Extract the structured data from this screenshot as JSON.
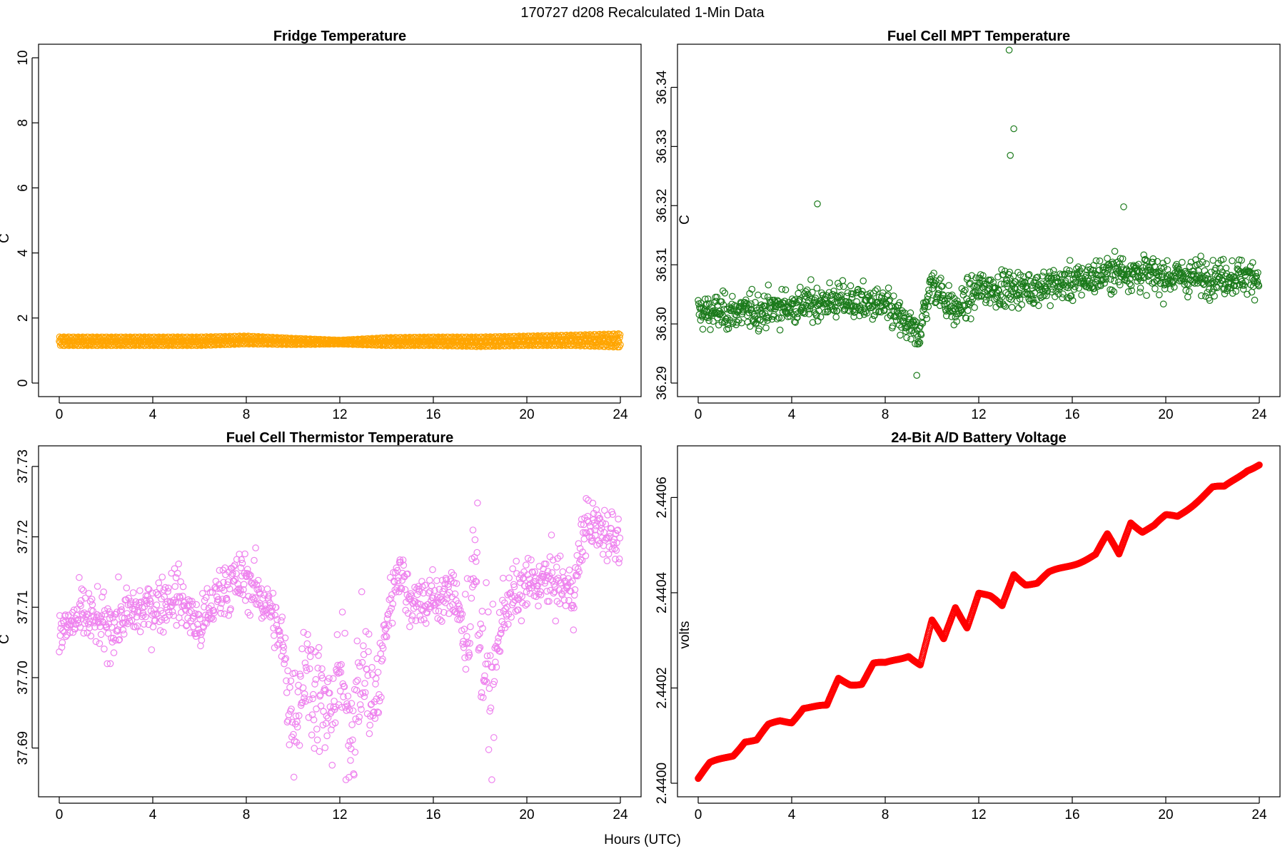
{
  "figure": {
    "title": "170727   d208   Recalculated 1-Min Data",
    "xlabel": "Hours (UTC)"
  },
  "chart_data": [
    {
      "type": "scatter",
      "title": "Fridge Temperature",
      "xlabel": "Hours (UTC)",
      "ylabel": "C",
      "xlim": [
        0,
        24
      ],
      "ylim": [
        0,
        10
      ],
      "xticks": [
        0,
        4,
        8,
        12,
        16,
        20,
        24
      ],
      "yticks": [
        0,
        2,
        4,
        6,
        8,
        10
      ],
      "ytick_labels": [
        "0",
        "2",
        "4",
        "6",
        "8",
        "10"
      ],
      "color": "#FFA500",
      "grid": false,
      "series": [
        {
          "x": [
            0,
            2,
            4,
            6,
            8,
            10,
            12,
            14,
            16,
            18,
            20,
            22,
            24
          ],
          "y_low": [
            1.15,
            1.15,
            1.15,
            1.15,
            1.2,
            1.18,
            1.2,
            1.15,
            1.15,
            1.12,
            1.15,
            1.15,
            1.1
          ],
          "y_high": [
            1.42,
            1.42,
            1.42,
            1.42,
            1.45,
            1.38,
            1.32,
            1.4,
            1.42,
            1.42,
            1.45,
            1.48,
            1.52
          ]
        }
      ]
    },
    {
      "type": "scatter",
      "title": "Fuel Cell MPT Temperature",
      "xlabel": "Hours (UTC)",
      "ylabel": "C",
      "xlim": [
        0,
        24
      ],
      "ylim": [
        36.29,
        36.345
      ],
      "xticks": [
        0,
        4,
        8,
        12,
        16,
        20,
        24
      ],
      "yticks": [
        36.29,
        36.3,
        36.31,
        36.32,
        36.33,
        36.34
      ],
      "ytick_labels": [
        "36.29",
        "36.30",
        "36.31",
        "36.32",
        "36.33",
        "36.34"
      ],
      "color": "#1B7A1B",
      "grid": false,
      "series": [
        {
          "x": [
            0,
            2,
            4,
            6,
            8,
            9.4,
            10,
            11,
            12,
            13,
            14,
            16,
            18,
            20,
            22,
            24
          ],
          "y": [
            36.302,
            36.302,
            36.303,
            36.304,
            36.303,
            36.298,
            36.307,
            36.302,
            36.306,
            36.306,
            36.306,
            36.307,
            36.309,
            36.308,
            36.308,
            36.308
          ],
          "outliers": [
            [
              5.1,
              36.3203
            ],
            [
              13.3,
              36.3463
            ],
            [
              13.5,
              36.333
            ],
            [
              13.35,
              36.3285
            ],
            [
              18.2,
              36.3198
            ],
            [
              9.35,
              36.2913
            ]
          ]
        }
      ]
    },
    {
      "type": "scatter",
      "title": "Fuel Cell Thermistor Temperature",
      "xlabel": "Hours (UTC)",
      "ylabel": "C",
      "xlim": [
        0,
        24
      ],
      "ylim": [
        37.685,
        37.731
      ],
      "xticks": [
        0,
        4,
        8,
        12,
        16,
        20,
        24
      ],
      "yticks": [
        37.69,
        37.7,
        37.71,
        37.72,
        37.73
      ],
      "ytick_labels": [
        "37.69",
        "37.70",
        "37.71",
        "37.72",
        "37.73"
      ],
      "color": "#EE82EE",
      "grid": false,
      "series": [
        {
          "x": [
            0,
            1,
            2,
            3,
            4,
            5,
            6,
            7,
            8,
            9,
            9.5,
            10,
            10.5,
            11,
            11.5,
            12,
            12.5,
            13,
            13.5,
            14,
            14.5,
            15,
            16,
            17,
            17.5,
            17.8,
            18,
            18.5,
            19,
            20,
            21,
            22,
            22.5,
            23,
            24
          ],
          "y": [
            37.706,
            37.709,
            37.707,
            37.709,
            37.71,
            37.712,
            37.707,
            37.713,
            37.714,
            37.71,
            37.705,
            37.694,
            37.702,
            37.698,
            37.694,
            37.7,
            37.693,
            37.702,
            37.695,
            37.708,
            37.716,
            37.711,
            37.711,
            37.712,
            37.702,
            37.723,
            37.704,
            37.698,
            37.71,
            37.713,
            37.714,
            37.712,
            37.722,
            37.721,
            37.72
          ]
        }
      ]
    },
    {
      "type": "line",
      "title": "24-Bit A/D Battery Voltage",
      "xlabel": "Hours (UTC)",
      "ylabel": "volts",
      "xlim": [
        0,
        24
      ],
      "ylim": [
        2.44,
        2.44068
      ],
      "xticks": [
        0,
        4,
        8,
        12,
        16,
        20,
        24
      ],
      "yticks": [
        2.44,
        2.4402,
        2.4404,
        2.4406
      ],
      "ytick_labels": [
        "2.4400",
        "2.4402",
        "2.4404",
        "2.4406"
      ],
      "color": "#FF0000",
      "grid": false,
      "series": [
        {
          "x": [
            0,
            0.5,
            1,
            1.5,
            2,
            2.5,
            3,
            3.5,
            4,
            4.5,
            5,
            5.5,
            6,
            6.5,
            7,
            7.5,
            8,
            8.5,
            9,
            9.5,
            10,
            10.5,
            11,
            11.5,
            12,
            12.5,
            13,
            13.5,
            14,
            14.5,
            15,
            15.5,
            16,
            16.5,
            17,
            17.5,
            18,
            18.5,
            19,
            19.5,
            20,
            20.5,
            21,
            21.5,
            22,
            22.5,
            23,
            23.5,
            24
          ],
          "y": [
            2.44001,
            2.44004,
            2.44005,
            2.44006,
            2.44009,
            2.44009,
            2.44012,
            2.44013,
            2.44013,
            2.44016,
            2.44016,
            2.44016,
            2.44022,
            2.44021,
            2.44021,
            2.44025,
            2.44025,
            2.44026,
            2.44027,
            2.44025,
            2.44034,
            2.4403,
            2.44037,
            2.44033,
            2.4404,
            2.44039,
            2.44037,
            2.44044,
            2.44042,
            2.44042,
            2.44044,
            2.44045,
            2.44046,
            2.44047,
            2.44048,
            2.44052,
            2.44048,
            2.44055,
            2.44053,
            2.44054,
            2.44056,
            2.44056,
            2.44058,
            2.4406,
            2.44062,
            2.44062,
            2.44064,
            2.44066,
            2.44067
          ]
        }
      ]
    }
  ]
}
